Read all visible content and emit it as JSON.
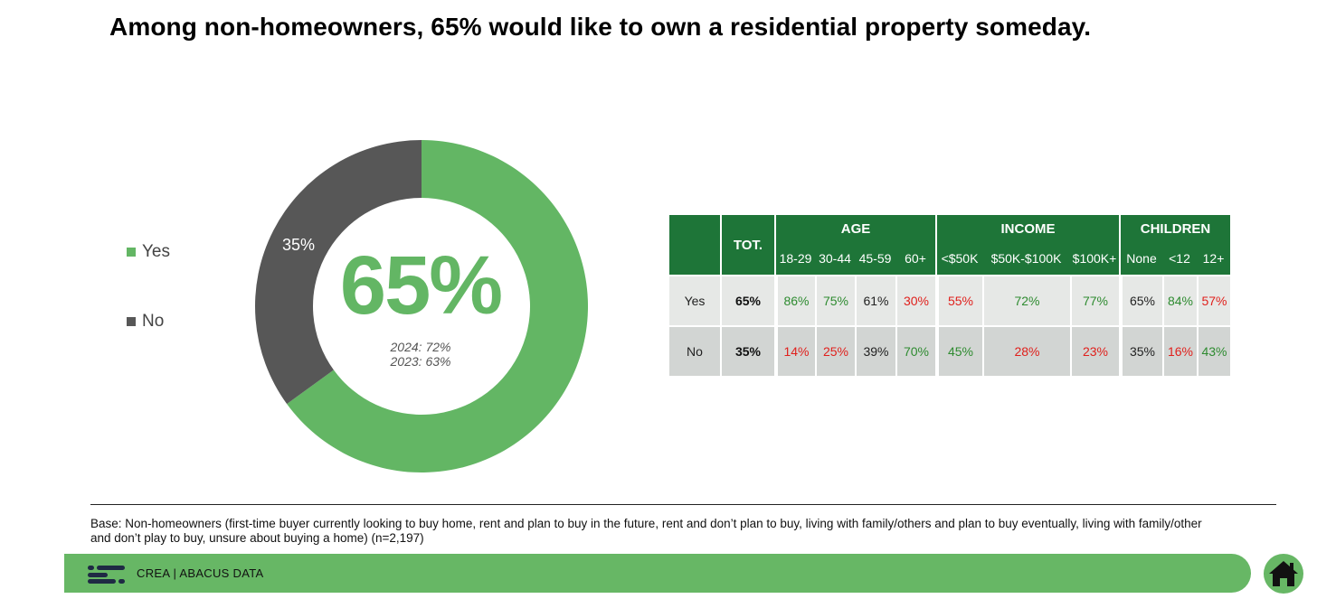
{
  "title": "Among non-homeowners, 65% would like to own a residential property someday.",
  "chart_data": [
    {
      "type": "pie",
      "categories": [
        "Yes",
        "No"
      ],
      "values": [
        65,
        35
      ],
      "slice_labels": [
        "",
        "35%"
      ],
      "colors": [
        "#63b664",
        "#575757"
      ],
      "center_value": "65%",
      "center_notes": [
        "2024: 72%",
        "2023: 63%"
      ],
      "legend": [
        {
          "label": "Yes",
          "color": "#63b664"
        },
        {
          "label": "No",
          "color": "#575757"
        }
      ]
    },
    {
      "type": "table",
      "total_header": "TOT.",
      "groups": [
        {
          "name": "AGE",
          "columns": [
            "18-29",
            "30-44",
            "45-59",
            "60+"
          ]
        },
        {
          "name": "INCOME",
          "columns": [
            "<$50K",
            "$50K-$100K",
            "$100K+"
          ]
        },
        {
          "name": "CHILDREN",
          "columns": [
            "None",
            "<12",
            "12+"
          ]
        }
      ],
      "rows": [
        {
          "label": "Yes",
          "total": "65%",
          "values": [
            "86%",
            "75%",
            "61%",
            "30%",
            "55%",
            "72%",
            "77%",
            "65%",
            "84%",
            "57%"
          ],
          "tones": [
            "pos",
            "pos",
            "neu",
            "neg",
            "neg",
            "pos",
            "pos",
            "neu",
            "pos",
            "neg"
          ]
        },
        {
          "label": "No",
          "total": "35%",
          "values": [
            "14%",
            "25%",
            "39%",
            "70%",
            "45%",
            "28%",
            "23%",
            "35%",
            "16%",
            "43%"
          ],
          "tones": [
            "neg",
            "neg",
            "neu",
            "pos",
            "pos",
            "neg",
            "neg",
            "neu",
            "neg",
            "pos"
          ]
        }
      ],
      "colors": {
        "header": "#1e7538",
        "positive": "#2e8b30",
        "negative": "#e0201c"
      }
    }
  ],
  "footnote": "Base: Non-homeowners (first-time buyer currently looking to buy home, rent and plan to buy in the future, rent and don’t plan to buy, living with family/others and plan to buy eventually, living with family/other and don’t play to buy, unsure about buying a home) (n=2,197)",
  "footer": {
    "text": "CREA  |  ABACUS DATA",
    "bar_color": "#67b765"
  },
  "icons": {
    "logo": "abacus-logo-icon",
    "home": "home-icon"
  }
}
